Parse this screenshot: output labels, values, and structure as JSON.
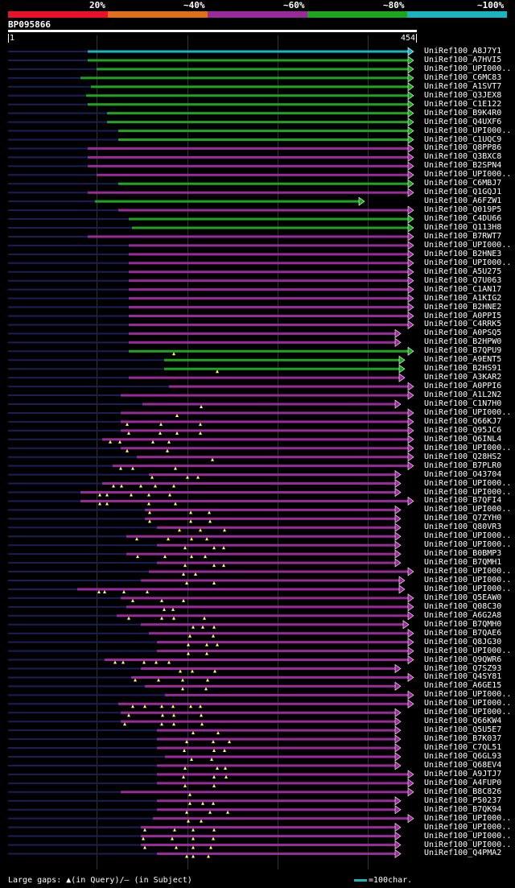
{
  "legend": {
    "labels": [
      "20%",
      "~40%",
      "~60%",
      "~80%",
      "~100%"
    ],
    "colors": [
      "#e8122a",
      "#e06f1c",
      "#9a2a9a",
      "#1ea51e",
      "#1ab3c0"
    ]
  },
  "query": {
    "id": "BP095866",
    "start": "1",
    "end": "454",
    "length": 454
  },
  "colors": {
    "background": "#000000",
    "leader": "#1a1f5a",
    "grid": "#2f3340",
    "gap_marker": "#ffff66"
  },
  "hits": [
    {
      "name": "UniRef100_A8J7Y1",
      "s": 109,
      "e": 514,
      "c": "#1ab3c0",
      "g": []
    },
    {
      "name": "UniRef100_A7HVI5",
      "s": 109,
      "e": 514,
      "c": "#1ea51e",
      "g": []
    },
    {
      "name": "UniRef100_UPI000..",
      "s": 120,
      "e": 514,
      "c": "#1ea51e",
      "g": []
    },
    {
      "name": "UniRef100_C6MC83",
      "s": 100,
      "e": 514,
      "c": "#1ea51e",
      "g": []
    },
    {
      "name": "UniRef100_A1SVT7",
      "s": 113,
      "e": 514,
      "c": "#1ea51e",
      "g": []
    },
    {
      "name": "UniRef100_Q3JEX8",
      "s": 107,
      "e": 514,
      "c": "#1ea51e",
      "g": []
    },
    {
      "name": "UniRef100_C1E122",
      "s": 109,
      "e": 514,
      "c": "#1ea51e",
      "g": []
    },
    {
      "name": "UniRef100_B9K4R0",
      "s": 133,
      "e": 514,
      "c": "#1ea51e",
      "g": []
    },
    {
      "name": "UniRef100_Q4UXF6",
      "s": 133,
      "e": 514,
      "c": "#1ea51e",
      "g": []
    },
    {
      "name": "UniRef100_UPI000..",
      "s": 147,
      "e": 514,
      "c": "#1ea51e",
      "g": []
    },
    {
      "name": "UniRef100_C1UQC9",
      "s": 147,
      "e": 514,
      "c": "#1ea51e",
      "g": []
    },
    {
      "name": "UniRef100_Q8PP86",
      "s": 109,
      "e": 514,
      "c": "#9a2a9a",
      "g": []
    },
    {
      "name": "UniRef100_Q3BXC8",
      "s": 109,
      "e": 514,
      "c": "#9a2a9a",
      "g": []
    },
    {
      "name": "UniRef100_B2SPN4",
      "s": 109,
      "e": 514,
      "c": "#9a2a9a",
      "g": []
    },
    {
      "name": "UniRef100_UPI000..",
      "s": 120,
      "e": 514,
      "c": "#9a2a9a",
      "g": []
    },
    {
      "name": "UniRef100_C6MBJ7",
      "s": 147,
      "e": 514,
      "c": "#1ea51e",
      "g": []
    },
    {
      "name": "UniRef100_Q1GQJ1",
      "s": 109,
      "e": 514,
      "c": "#9a2a9a",
      "g": []
    },
    {
      "name": "UniRef100_A6FZW1",
      "s": 118,
      "e": 453,
      "c": "#1ea51e",
      "g": []
    },
    {
      "name": "UniRef100_Q019P5",
      "s": 147,
      "e": 514,
      "c": "#9a2a9a",
      "g": []
    },
    {
      "name": "UniRef100_C4DU66",
      "s": 160,
      "e": 514,
      "c": "#1ea51e",
      "g": []
    },
    {
      "name": "UniRef100_Q113H8",
      "s": 164,
      "e": 514,
      "c": "#1ea51e",
      "g": []
    },
    {
      "name": "UniRef100_B7RWT7",
      "s": 109,
      "e": 514,
      "c": "#9a2a9a",
      "g": []
    },
    {
      "name": "UniRef100_UPI000..",
      "s": 160,
      "e": 514,
      "c": "#9a2a9a",
      "g": []
    },
    {
      "name": "UniRef100_B2HNE3",
      "s": 160,
      "e": 514,
      "c": "#9a2a9a",
      "g": []
    },
    {
      "name": "UniRef100_UPI000..",
      "s": 160,
      "e": 514,
      "c": "#9a2a9a",
      "g": []
    },
    {
      "name": "UniRef100_A5U275",
      "s": 160,
      "e": 514,
      "c": "#9a2a9a",
      "g": []
    },
    {
      "name": "UniRef100_Q7U063",
      "s": 160,
      "e": 514,
      "c": "#9a2a9a",
      "g": []
    },
    {
      "name": "UniRef100_C1AN17",
      "s": 160,
      "e": 514,
      "c": "#9a2a9a",
      "g": []
    },
    {
      "name": "UniRef100_A1KIG2",
      "s": 160,
      "e": 514,
      "c": "#9a2a9a",
      "g": []
    },
    {
      "name": "UniRef100_B2HNE2",
      "s": 160,
      "e": 514,
      "c": "#9a2a9a",
      "g": []
    },
    {
      "name": "UniRef100_A0PPI5",
      "s": 160,
      "e": 514,
      "c": "#9a2a9a",
      "g": []
    },
    {
      "name": "UniRef100_C4RRK5",
      "s": 160,
      "e": 514,
      "c": "#9a2a9a",
      "g": []
    },
    {
      "name": "UniRef100_A0PSQ5",
      "s": 160,
      "e": 498,
      "c": "#9a2a9a",
      "g": []
    },
    {
      "name": "UniRef100_B2HPW0",
      "s": 160,
      "e": 498,
      "c": "#9a2a9a",
      "g": []
    },
    {
      "name": "UniRef100_B7QPU9",
      "s": 160,
      "e": 514,
      "c": "#1ea51e",
      "g": [
        216
      ]
    },
    {
      "name": "UniRef100_A9ENT5",
      "s": 204,
      "e": 503,
      "c": "#1ea51e",
      "g": []
    },
    {
      "name": "UniRef100_B2HS91",
      "s": 204,
      "e": 503,
      "c": "#1ea51e",
      "g": [
        270
      ]
    },
    {
      "name": "UniRef100_A3KAR2",
      "s": 160,
      "e": 503,
      "c": "#9a2a9a",
      "g": []
    },
    {
      "name": "UniRef100_A0PPI6",
      "s": 210,
      "e": 514,
      "c": "#9a2a9a",
      "g": []
    },
    {
      "name": "UniRef100_A1L2N2",
      "s": 150,
      "e": 514,
      "c": "#9a2a9a",
      "g": []
    },
    {
      "name": "UniRef100_C1N7H0",
      "s": 177,
      "e": 498,
      "c": "#9a2a9a",
      "g": [
        250
      ]
    },
    {
      "name": "UniRef100_UPI000..",
      "s": 150,
      "e": 514,
      "c": "#9a2a9a",
      "g": [
        220
      ]
    },
    {
      "name": "UniRef100_Q66KJ7",
      "s": 150,
      "e": 514,
      "c": "#9a2a9a",
      "g": [
        158,
        200,
        249
      ]
    },
    {
      "name": "UniRef100_Q95JC6",
      "s": 150,
      "e": 514,
      "c": "#9a2a9a",
      "g": [
        160,
        199,
        220,
        249
      ]
    },
    {
      "name": "UniRef100_Q6INL4",
      "s": 127,
      "e": 514,
      "c": "#9a2a9a",
      "g": [
        137,
        149,
        190,
        210
      ]
    },
    {
      "name": "UniRef100_UPI000..",
      "s": 150,
      "e": 514,
      "c": "#9a2a9a",
      "g": [
        158,
        208
      ]
    },
    {
      "name": "UniRef100_Q28HS2",
      "s": 170,
      "e": 514,
      "c": "#9a2a9a",
      "g": [
        264
      ]
    },
    {
      "name": "UniRef100_B7PLR0",
      "s": 140,
      "e": 514,
      "c": "#9a2a9a",
      "g": [
        150,
        165,
        218
      ]
    },
    {
      "name": "UniRef100_O43704",
      "s": 185,
      "e": 498,
      "c": "#9a2a9a",
      "g": [
        189,
        233,
        246
      ]
    },
    {
      "name": "UniRef100_UPI000..",
      "s": 127,
      "e": 498,
      "c": "#9a2a9a",
      "g": [
        141,
        151,
        175,
        193,
        216
      ]
    },
    {
      "name": "UniRef100_UPI000..",
      "s": 100,
      "e": 498,
      "c": "#9a2a9a",
      "g": [
        124,
        133,
        163,
        185,
        211
      ]
    },
    {
      "name": "UniRef100_B7QFI4",
      "s": 100,
      "e": 514,
      "c": "#9a2a9a",
      "g": [
        124,
        133,
        185,
        218
      ]
    },
    {
      "name": "UniRef100_UPI000..",
      "s": 180,
      "e": 498,
      "c": "#9a2a9a",
      "g": [
        186,
        237,
        260
      ]
    },
    {
      "name": "UniRef100_Q7ZYH0",
      "s": 180,
      "e": 498,
      "c": "#9a2a9a",
      "g": [
        186,
        237,
        261
      ]
    },
    {
      "name": "UniRef100_Q80VR3",
      "s": 195,
      "e": 498,
      "c": "#9a2a9a",
      "g": [
        223,
        249,
        279
      ]
    },
    {
      "name": "UniRef100_UPI000..",
      "s": 157,
      "e": 498,
      "c": "#9a2a9a",
      "g": [
        170,
        209,
        238,
        257
      ]
    },
    {
      "name": "UniRef100_UPI000..",
      "s": 195,
      "e": 498,
      "c": "#9a2a9a",
      "g": [
        230,
        266,
        278
      ]
    },
    {
      "name": "UniRef100_B0BMP3",
      "s": 157,
      "e": 498,
      "c": "#9a2a9a",
      "g": [
        171,
        205,
        238,
        255
      ]
    },
    {
      "name": "UniRef100_B7QMH1",
      "s": 195,
      "e": 498,
      "c": "#9a2a9a",
      "g": [
        230,
        266,
        278
      ]
    },
    {
      "name": "UniRef100_UPI000..",
      "s": 185,
      "e": 514,
      "c": "#9a2a9a",
      "g": [
        228,
        243
      ]
    },
    {
      "name": "UniRef100_UPI000..",
      "s": 175,
      "e": 503,
      "c": "#9a2a9a",
      "g": [
        232,
        266
      ]
    },
    {
      "name": "UniRef100_UPI000..",
      "s": 96,
      "e": 503,
      "c": "#9a2a9a",
      "g": [
        123,
        130,
        154,
        183
      ]
    },
    {
      "name": "UniRef100_Q5EAW0",
      "s": 150,
      "e": 514,
      "c": "#9a2a9a",
      "g": [
        165,
        201,
        228
      ]
    },
    {
      "name": "UniRef100_Q08C30",
      "s": 157,
      "e": 514,
      "c": "#9a2a9a",
      "g": [
        204,
        215
      ]
    },
    {
      "name": "UniRef100_A6G2A8",
      "s": 145,
      "e": 514,
      "c": "#9a2a9a",
      "g": [
        160,
        201,
        216,
        254
      ]
    },
    {
      "name": "UniRef100_B7QMH0",
      "s": 175,
      "e": 508,
      "c": "#9a2a9a",
      "g": [
        240,
        252,
        266
      ]
    },
    {
      "name": "UniRef100_B7QAE6",
      "s": 185,
      "e": 514,
      "c": "#9a2a9a",
      "g": [
        236,
        265
      ]
    },
    {
      "name": "UniRef100_Q8JG30",
      "s": 195,
      "e": 514,
      "c": "#9a2a9a",
      "g": [
        234,
        257,
        270
      ]
    },
    {
      "name": "UniRef100_UPI000..",
      "s": 195,
      "e": 514,
      "c": "#9a2a9a",
      "g": [
        234,
        257
      ]
    },
    {
      "name": "UniRef100_Q9QWR6",
      "s": 130,
      "e": 514,
      "c": "#9a2a9a",
      "g": [
        143,
        153,
        179,
        194,
        210
      ]
    },
    {
      "name": "UniRef100_Q7SZ93",
      "s": 175,
      "e": 498,
      "c": "#9a2a9a",
      "g": [
        224,
        239,
        267
      ]
    },
    {
      "name": "UniRef100_Q4SY81",
      "s": 163,
      "e": 514,
      "c": "#9a2a9a",
      "g": [
        168,
        197,
        227,
        258
      ]
    },
    {
      "name": "UniRef100_A6GE15",
      "s": 180,
      "e": 498,
      "c": "#9a2a9a",
      "g": [
        227,
        256
      ]
    },
    {
      "name": "UniRef100_UPI000..",
      "s": 205,
      "e": 514,
      "c": "#9a2a9a",
      "g": []
    },
    {
      "name": "UniRef100_UPI000..",
      "s": 147,
      "e": 514,
      "c": "#9a2a9a",
      "g": [
        165,
        180,
        201,
        215,
        237,
        249
      ]
    },
    {
      "name": "UniRef100_UPI000..",
      "s": 150,
      "e": 498,
      "c": "#9a2a9a",
      "g": [
        160,
        202,
        216,
        250
      ]
    },
    {
      "name": "UniRef100_Q66KW4",
      "s": 150,
      "e": 498,
      "c": "#9a2a9a",
      "g": [
        155,
        201,
        216,
        251
      ]
    },
    {
      "name": "UniRef100_Q5U5E7",
      "s": 195,
      "e": 498,
      "c": "#9a2a9a",
      "g": [
        240,
        271
      ]
    },
    {
      "name": "UniRef100_B7K037",
      "s": 195,
      "e": 498,
      "c": "#9a2a9a",
      "g": [
        232,
        265,
        285
      ]
    },
    {
      "name": "UniRef100_C7QL51",
      "s": 195,
      "e": 498,
      "c": "#9a2a9a",
      "g": [
        229,
        266,
        279
      ]
    },
    {
      "name": "UniRef100_Q6GL93",
      "s": 205,
      "e": 498,
      "c": "#9a2a9a",
      "g": [
        238,
        263
      ]
    },
    {
      "name": "UniRef100_Q68EV4",
      "s": 195,
      "e": 498,
      "c": "#9a2a9a",
      "g": [
        230,
        270,
        280
      ]
    },
    {
      "name": "UniRef100_A9JTJ7",
      "s": 195,
      "e": 514,
      "c": "#9a2a9a",
      "g": [
        228,
        266,
        281
      ]
    },
    {
      "name": "UniRef100_A4FUP0",
      "s": 195,
      "e": 514,
      "c": "#9a2a9a",
      "g": [
        230,
        266
      ]
    },
    {
      "name": "UniRef100_B8C826",
      "s": 150,
      "e": 514,
      "c": "#9a2a9a",
      "g": [
        236
      ]
    },
    {
      "name": "UniRef100_P50237",
      "s": 195,
      "e": 498,
      "c": "#9a2a9a",
      "g": [
        236,
        252,
        265
      ]
    },
    {
      "name": "UniRef100_B7QK94",
      "s": 195,
      "e": 498,
      "c": "#9a2a9a",
      "g": [
        232,
        261,
        283
      ]
    },
    {
      "name": "UniRef100_UPI000..",
      "s": 190,
      "e": 514,
      "c": "#9a2a9a",
      "g": [
        234,
        250
      ]
    },
    {
      "name": "UniRef100_UPI000..",
      "s": 175,
      "e": 498,
      "c": "#9a2a9a",
      "g": [
        180,
        217,
        240,
        266
      ]
    },
    {
      "name": "UniRef100_UPI000..",
      "s": 175,
      "e": 498,
      "c": "#9a2a9a",
      "g": [
        178,
        214,
        240,
        265
      ]
    },
    {
      "name": "UniRef100_UPI000..",
      "s": 175,
      "e": 498,
      "c": "#9a2a9a",
      "g": [
        180,
        219,
        240,
        262
      ]
    },
    {
      "name": "UniRef100_Q4PMA2",
      "s": 195,
      "e": 498,
      "c": "#9a2a9a",
      "g": [
        232,
        240,
        259
      ]
    }
  ],
  "footer": {
    "gaps_label": "Large gaps: ▲(in Query)/– (in Subject)",
    "scale_label": "=100char."
  }
}
